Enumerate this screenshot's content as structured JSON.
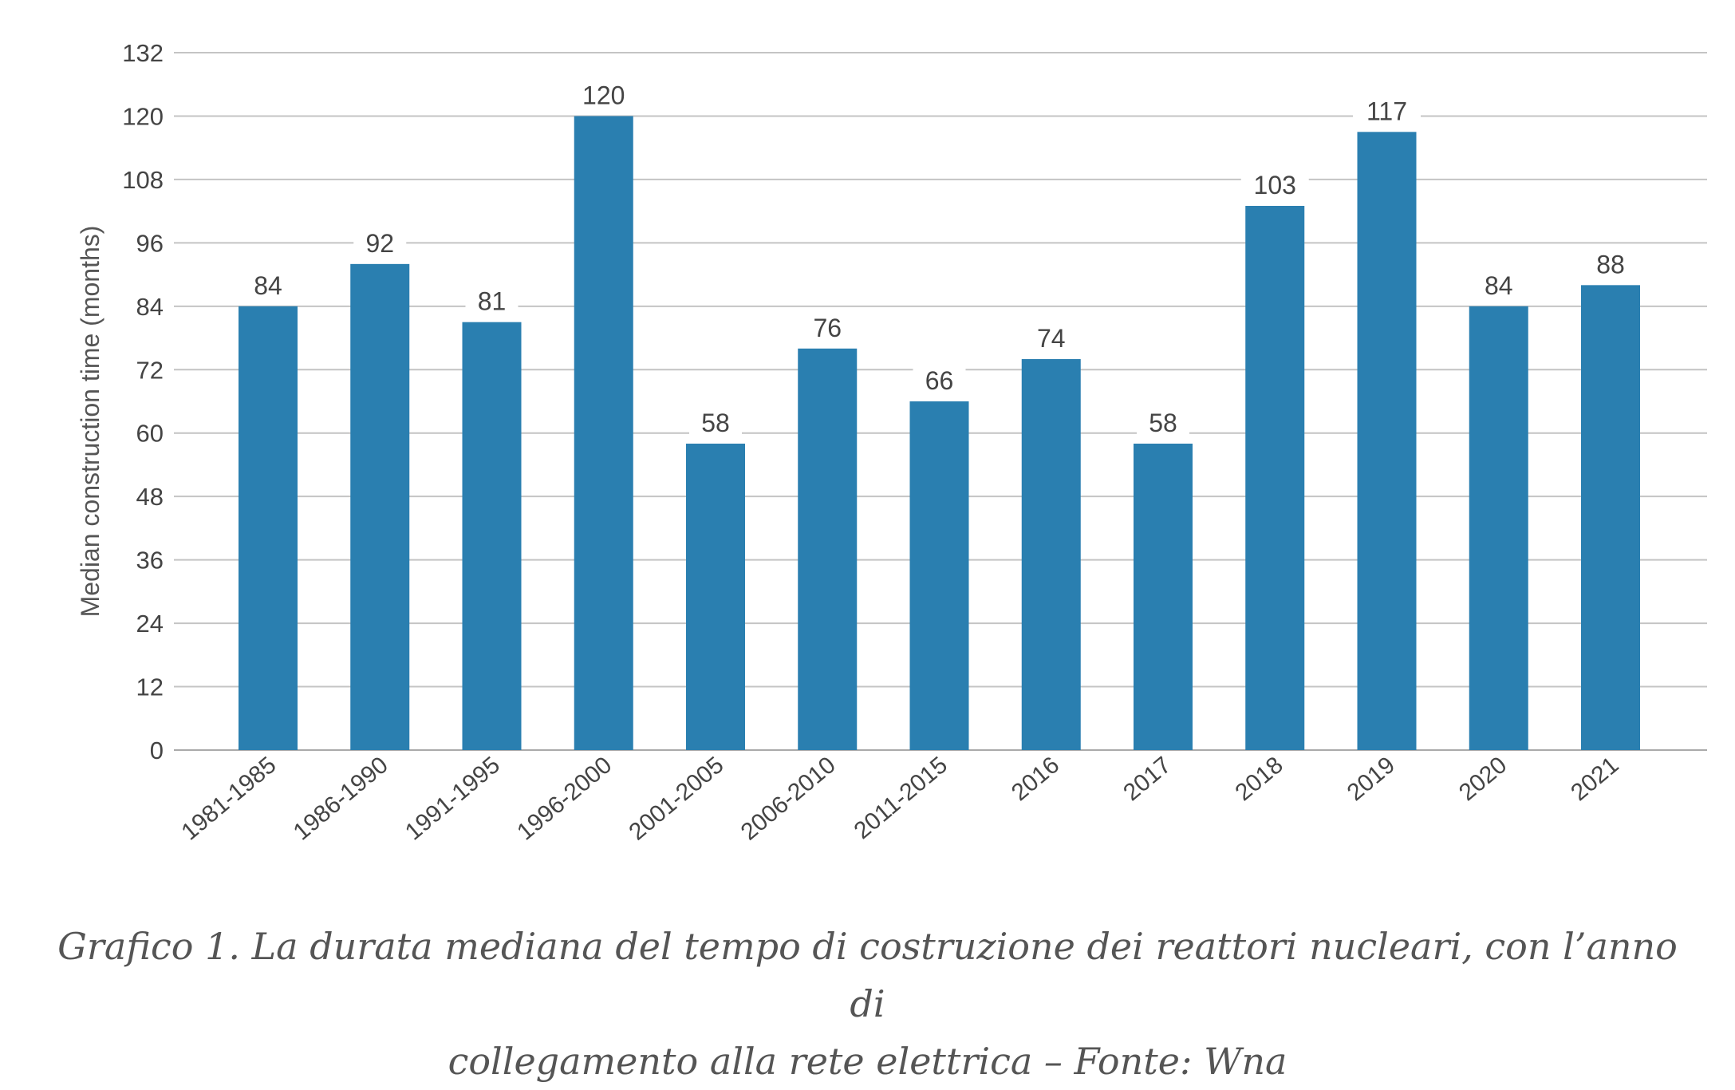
{
  "chart_data": {
    "type": "bar",
    "categories": [
      "1981-1985",
      "1986-1990",
      "1991-1995",
      "1996-2000",
      "2001-2005",
      "2006-2010",
      "2011-2015",
      "2016",
      "2017",
      "2018",
      "2019",
      "2020",
      "2021"
    ],
    "values": [
      84,
      92,
      81,
      120,
      58,
      76,
      66,
      74,
      58,
      103,
      117,
      84,
      88
    ],
    "data_labels": [
      "84",
      "92",
      "81",
      "120",
      "58",
      "76",
      "66",
      "74",
      "58",
      "103",
      "117",
      "84",
      "88"
    ],
    "ylabel": "Median construction time (months)",
    "xlabel": "",
    "ylim": [
      0,
      132
    ],
    "yticks": [
      0,
      12,
      24,
      36,
      48,
      60,
      72,
      84,
      96,
      108,
      120,
      132
    ],
    "grid": "horizontal",
    "bar_color": "#2a7fb0",
    "grid_color": "#c4c4c4",
    "text_color": "#444444"
  },
  "caption": {
    "line1": "Grafico 1. La durata mediana del tempo di costruzione dei reattori nucleari, con l’anno di",
    "line2": "collegamento alla rete elettrica – Fonte: Wna"
  }
}
